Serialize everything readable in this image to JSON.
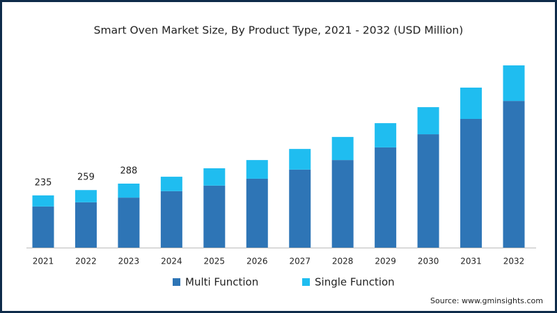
{
  "chart_data": {
    "type": "stacked-bar",
    "title": "Smart Oven Market Size, By Product Type, 2021 - 2032 (USD Million)",
    "categories": [
      "2021",
      "2022",
      "2023",
      "2024",
      "2025",
      "2026",
      "2027",
      "2028",
      "2029",
      "2030",
      "2031",
      "2032"
    ],
    "series": [
      {
        "name": "Multi Function",
        "color": "#2e75b6",
        "values": [
          185,
          204,
          225,
          254,
          279,
          310,
          351,
          394,
          451,
          510,
          579,
          660
        ]
      },
      {
        "name": "Single Function",
        "color": "#1fbdf0",
        "values": [
          50,
          55,
          63,
          65,
          78,
          84,
          93,
          104,
          109,
          122,
          141,
          160
        ]
      }
    ],
    "total_labels": [
      235,
      259,
      288,
      null,
      null,
      null,
      null,
      null,
      null,
      null,
      null,
      null
    ],
    "source": "Source: www.gminsights.com"
  }
}
